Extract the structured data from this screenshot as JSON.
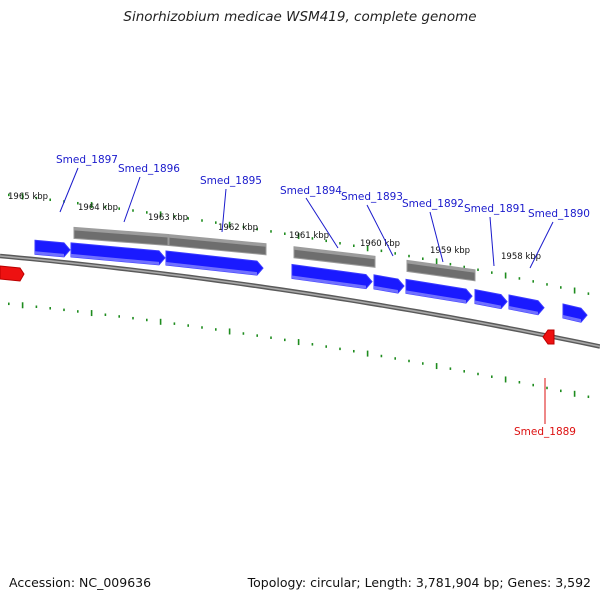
{
  "title": "Sinorhizobium medicae WSM419, complete genome",
  "footer": {
    "accession": "Accession: NC_009636",
    "topology": "Topology: circular; Length: 3,781,904 bp; Genes: 3,592"
  },
  "colors": {
    "forward_gene": "#1a1aff",
    "reverse_gene": "#ee1111",
    "cds": "#6e6e6e",
    "tick": "#1e8c1e",
    "label_blue": "#1a1acc",
    "label_red": "#dd1111",
    "backbone": "#777777"
  },
  "kbp_labels": [
    "1965 kbp",
    "1964 kbp",
    "1963 kbp",
    "1962 kbp",
    "1961 kbp",
    "1960 kbp",
    "1959 kbp",
    "1958 kbp"
  ],
  "genes": [
    {
      "name": "Smed_1897",
      "strand": "forward"
    },
    {
      "name": "Smed_1896",
      "strand": "forward"
    },
    {
      "name": "Smed_1895",
      "strand": "forward"
    },
    {
      "name": "Smed_1894",
      "strand": "forward"
    },
    {
      "name": "Smed_1893",
      "strand": "forward"
    },
    {
      "name": "Smed_1892",
      "strand": "forward"
    },
    {
      "name": "Smed_1891",
      "strand": "forward"
    },
    {
      "name": "Smed_1890",
      "strand": "forward"
    },
    {
      "name": "Smed_1889",
      "strand": "reverse"
    }
  ]
}
